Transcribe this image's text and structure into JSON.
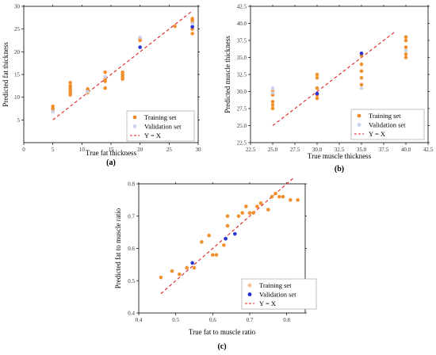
{
  "colors": {
    "training": "#f08a24",
    "validation_a": "#1f2ad6",
    "validation_c": "#1f2ad6",
    "training_light": "#f5be8e",
    "validation_light": "#c9d3ec",
    "fit_line": "#e02020"
  },
  "chart_data": [
    {
      "type": "scatter",
      "panel_label": "(a)",
      "xlabel": "True fat thickness",
      "ylabel": "Predicted fat thickness",
      "xlim": [
        0,
        30
      ],
      "ylim": [
        0,
        30
      ],
      "xticks": [
        "0",
        "5",
        "10",
        "15",
        "20",
        "25",
        "30"
      ],
      "yticks": [
        "5",
        "10",
        "15",
        "20",
        "25",
        "30"
      ],
      "legend": [
        "Training set",
        "Validation set",
        "Y = X"
      ],
      "legend_position": "bottom-right",
      "fit_line": {
        "from": [
          5,
          5
        ],
        "to": [
          29,
          29
        ]
      },
      "series": [
        {
          "name": "Training set",
          "points": [
            [
              5,
              7
            ],
            [
              5,
              7.5
            ],
            [
              5,
              8
            ],
            [
              8,
              10.5
            ],
            [
              8,
              11
            ],
            [
              8,
              11.5
            ],
            [
              8,
              12
            ],
            [
              8,
              12.5
            ],
            [
              8,
              13.2
            ],
            [
              11,
              11
            ],
            [
              11,
              11.5
            ],
            [
              11,
              11.8
            ],
            [
              14,
              12
            ],
            [
              14,
              13.5
            ],
            [
              14,
              14
            ],
            [
              14,
              15.5
            ],
            [
              17,
              14
            ],
            [
              17,
              14.5
            ],
            [
              17,
              15
            ],
            [
              17,
              15.5
            ],
            [
              20,
              22.5
            ],
            [
              20,
              23
            ],
            [
              26,
              25.6
            ],
            [
              29,
              24
            ],
            [
              29,
              25
            ],
            [
              29,
              26.5
            ],
            [
              29,
              27
            ],
            [
              29,
              27.3
            ]
          ]
        },
        {
          "name": "Validation set",
          "points": [
            [
              5,
              6.8
            ],
            [
              11,
              11.2
            ],
            [
              14,
              14.5
            ],
            [
              20,
              21
            ],
            [
              20,
              23.2
            ],
            [
              29,
              25.5
            ],
            [
              29,
              26.2
            ]
          ]
        }
      ]
    },
    {
      "type": "scatter",
      "panel_label": "(b)",
      "xlabel": "True muscle thickness",
      "ylabel": "Predicted muscle thickness",
      "xlim": [
        22.5,
        42.5
      ],
      "ylim": [
        22.5,
        42.5
      ],
      "xticks": [
        "22.5",
        "25.0",
        "27.5",
        "30.0",
        "32.5",
        "35.0",
        "37.5",
        "40.0",
        "42.5"
      ],
      "yticks": [
        "22.5",
        "25.0",
        "27.5",
        "30.0",
        "32.5",
        "35.0",
        "37.5",
        "40.0",
        "42.5"
      ],
      "legend": [
        "Training set",
        "Validation set",
        "Y = X"
      ],
      "legend_position": "bottom-right",
      "fit_line": {
        "from": [
          25,
          25
        ],
        "to": [
          38.7,
          38.7
        ]
      },
      "series": [
        {
          "name": "Training set",
          "points": [
            [
              25,
              27.5
            ],
            [
              25,
              28
            ],
            [
              25,
              28.5
            ],
            [
              25,
              29.5
            ],
            [
              25,
              30
            ],
            [
              30,
              29
            ],
            [
              30,
              29.5
            ],
            [
              30,
              30.5
            ],
            [
              30,
              32
            ],
            [
              30,
              32.5
            ],
            [
              35,
              31
            ],
            [
              35,
              32
            ],
            [
              35,
              33
            ],
            [
              35,
              34
            ],
            [
              35,
              35.3
            ],
            [
              40,
              35
            ],
            [
              40,
              35.5
            ],
            [
              40,
              36.5
            ],
            [
              40,
              37.5
            ],
            [
              40,
              38
            ]
          ]
        },
        {
          "name": "Validation set",
          "points": [
            [
              25,
              29.8
            ],
            [
              25,
              30.5
            ],
            [
              30,
              29.7
            ],
            [
              35,
              30.5
            ],
            [
              35,
              35.6
            ],
            [
              40,
              36
            ]
          ]
        }
      ]
    },
    {
      "type": "scatter",
      "panel_label": "(c)",
      "xlabel": "True  fat to muscle ratio",
      "ylabel": "Predicted fat to muscle ratio",
      "xlim": [
        0.4,
        0.85
      ],
      "ylim": [
        0.4,
        0.8
      ],
      "xticks": [
        "0.4",
        "0.5",
        "0.6",
        "0.7",
        "0.8"
      ],
      "yticks": [
        "0.4",
        "0.5",
        "0.6",
        "0.7",
        "0.8"
      ],
      "legend": [
        "Training set",
        "Validation set",
        "Y = X"
      ],
      "legend_position": "bottom-right",
      "fit_line": {
        "from": [
          0.46,
          0.46
        ],
        "to": [
          0.82,
          0.82
        ]
      },
      "series": [
        {
          "name": "Training set",
          "points": [
            [
              0.46,
              0.51
            ],
            [
              0.49,
              0.53
            ],
            [
              0.51,
              0.52
            ],
            [
              0.53,
              0.54
            ],
            [
              0.55,
              0.54
            ],
            [
              0.57,
              0.62
            ],
            [
              0.59,
              0.64
            ],
            [
              0.6,
              0.58
            ],
            [
              0.61,
              0.58
            ],
            [
              0.63,
              0.61
            ],
            [
              0.64,
              0.67
            ],
            [
              0.64,
              0.7
            ],
            [
              0.67,
              0.7
            ],
            [
              0.68,
              0.71
            ],
            [
              0.69,
              0.73
            ],
            [
              0.7,
              0.71
            ],
            [
              0.71,
              0.71
            ],
            [
              0.72,
              0.73
            ],
            [
              0.73,
              0.74
            ],
            [
              0.75,
              0.72
            ],
            [
              0.76,
              0.76
            ],
            [
              0.77,
              0.77
            ],
            [
              0.78,
              0.76
            ],
            [
              0.79,
              0.76
            ],
            [
              0.81,
              0.75
            ],
            [
              0.83,
              0.75
            ]
          ]
        },
        {
          "name": "Validation set",
          "points": [
            [
              0.545,
              0.555
            ],
            [
              0.635,
              0.63
            ],
            [
              0.66,
              0.645
            ]
          ]
        }
      ]
    }
  ]
}
